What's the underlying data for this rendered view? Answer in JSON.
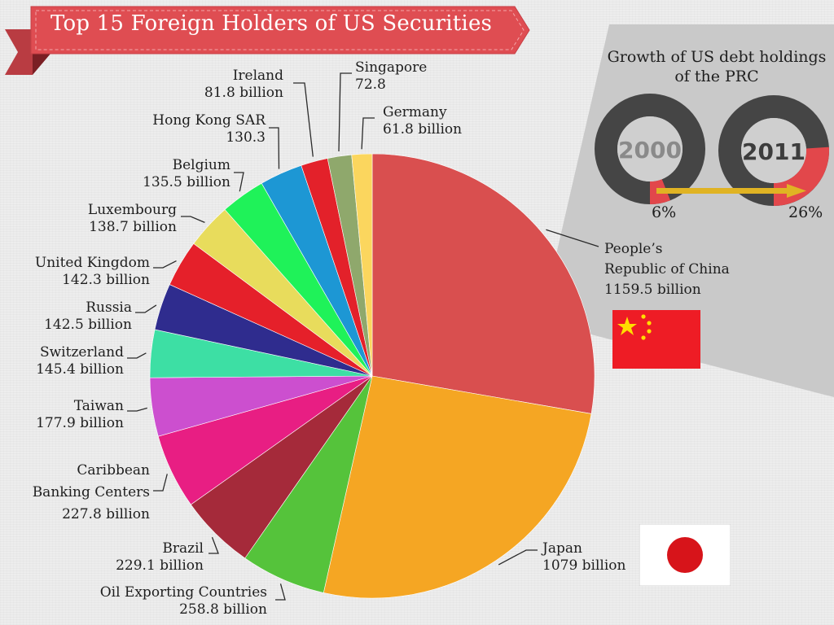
{
  "title": "Top 15 Foreign Holders of US Securities",
  "inset": {
    "title_line1": "Growth of US debt holdings",
    "title_line2": "of the PRC",
    "year_a": "2000",
    "year_b": "2011",
    "share_a": 6,
    "share_b": 26,
    "share_a_label": "6%",
    "share_b_label": "26%"
  },
  "colors": {
    "banner": "#df4d52",
    "donut_dark": "#454545",
    "donut_share": "#e2474b",
    "arrow": "#e0b323"
  },
  "chart_data": {
    "type": "pie",
    "title": "Top 15 Foreign Holders of US Securities",
    "unit": "billion",
    "slices": [
      {
        "name": "People's Republic of China",
        "value": 1159.5,
        "color": "#d94f4f",
        "line1": "People’s",
        "line2": "Republic of China",
        "line3": "1159.5 billion"
      },
      {
        "name": "Japan",
        "value": 1079,
        "color": "#f5a623",
        "line1": "Japan",
        "line2": "1079 billion"
      },
      {
        "name": "Oil Exporting Countries",
        "value": 258.8,
        "color": "#55c33b",
        "line1": "Oil Exporting Countries",
        "line2": "258.8 billion"
      },
      {
        "name": "Brazil",
        "value": 229.1,
        "color": "#a52a3a",
        "line1": "Brazil",
        "line2": "229.1 billion"
      },
      {
        "name": "Caribbean Banking Centers",
        "value": 227.8,
        "color": "#e81e83",
        "line1": "Caribbean",
        "line2": "Banking Centers",
        "line3": "227.8 billion"
      },
      {
        "name": "Taiwan",
        "value": 177.9,
        "color": "#cc4fcf",
        "line1": "Taiwan",
        "line2": "177.9 billion"
      },
      {
        "name": "Switzerland",
        "value": 145.4,
        "color": "#3ddfa4",
        "line1": "Switzerland",
        "line2": "145.4 billion"
      },
      {
        "name": "Russia",
        "value": 142.5,
        "color": "#2f2c8e",
        "line1": "Russia",
        "line2": "142.5 billion"
      },
      {
        "name": "United Kingdom",
        "value": 142.3,
        "color": "#e5202a",
        "line1": "United Kingdom",
        "line2": "142.3 billion"
      },
      {
        "name": "Luxembourg",
        "value": 138.7,
        "color": "#e8dc5c",
        "line1": "Luxembourg",
        "line2": "138.7 billion"
      },
      {
        "name": "Belgium",
        "value": 135.5,
        "color": "#1ff259",
        "line1": "Belgium",
        "line2": "135.5 billion"
      },
      {
        "name": "Hong Kong SAR",
        "value": 130.3,
        "color": "#1d97d4",
        "line1": "Hong Kong SAR",
        "line2": "130.3"
      },
      {
        "name": "Ireland",
        "value": 81.8,
        "color": "#e3212a",
        "line1": "Ireland",
        "line2": "81.8 billion"
      },
      {
        "name": "Singapore",
        "value": 72.8,
        "color": "#8fa86c",
        "line1": "Singapore",
        "line2": "72.8"
      },
      {
        "name": "Germany",
        "value": 61.8,
        "color": "#fbd65e",
        "line1": "Germany",
        "line2": "61.8 billion"
      }
    ]
  }
}
